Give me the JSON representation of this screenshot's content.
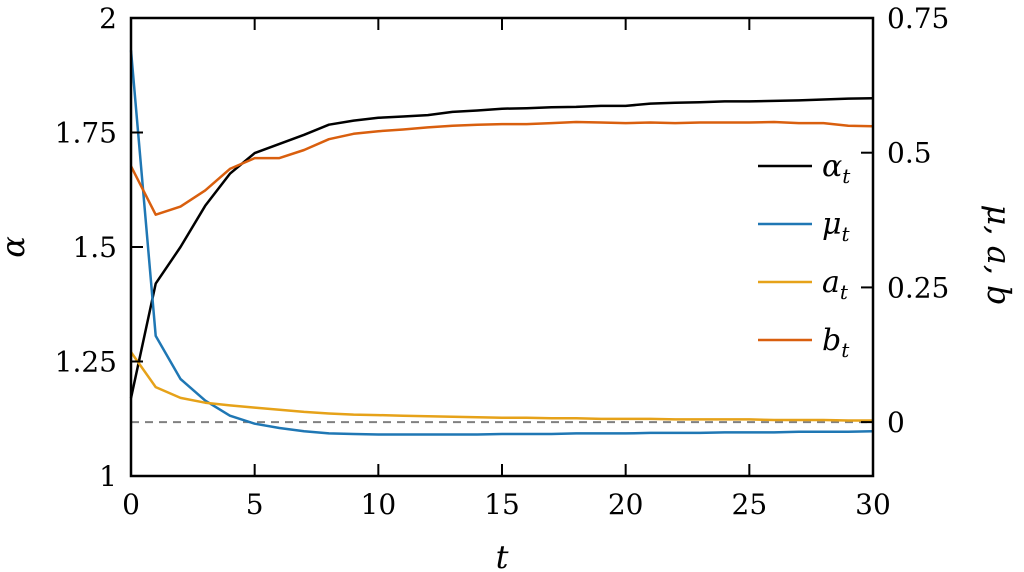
{
  "chart_data": {
    "type": "line",
    "xlabel": "t",
    "ylabel_left": "α",
    "ylabel_right": "μ, a, b",
    "xlim": [
      0,
      30
    ],
    "ylim_left": [
      1,
      2
    ],
    "ylim_right": [
      -0.1,
      0.75
    ],
    "x_ticks": [
      0,
      5,
      10,
      15,
      20,
      25,
      30
    ],
    "x_tick_labels": [
      "0",
      "5",
      "10",
      "15",
      "20",
      "25",
      "30"
    ],
    "y_left_ticks": [
      1,
      1.25,
      1.5,
      1.75,
      2
    ],
    "y_left_tick_labels": [
      "1",
      "1.25",
      "1.5",
      "1.75",
      "2"
    ],
    "y_right_ticks": [
      0,
      0.25,
      0.5,
      0.75
    ],
    "y_right_tick_labels": [
      "0",
      "0.25",
      "0.5",
      "0.75"
    ],
    "reference_line": {
      "axis": "right",
      "y": 0,
      "style": "dashed",
      "color": "#808080"
    },
    "legend_position": "center-right",
    "x": [
      0,
      1,
      2,
      3,
      4,
      5,
      6,
      7,
      8,
      9,
      10,
      11,
      12,
      13,
      14,
      15,
      16,
      17,
      18,
      19,
      20,
      21,
      22,
      23,
      24,
      25,
      26,
      27,
      28,
      29,
      30
    ],
    "series": [
      {
        "name": "α",
        "subscript": "t",
        "axis": "left",
        "color": "#000000",
        "values": [
          1.17,
          1.42,
          1.5,
          1.59,
          1.66,
          1.705,
          1.725,
          1.745,
          1.767,
          1.776,
          1.782,
          1.785,
          1.788,
          1.795,
          1.798,
          1.802,
          1.803,
          1.805,
          1.806,
          1.808,
          1.808,
          1.813,
          1.815,
          1.816,
          1.818,
          1.818,
          1.819,
          1.82,
          1.822,
          1.824,
          1.825
        ]
      },
      {
        "name": "μ",
        "subscript": "t",
        "axis": "right",
        "color": "#1f77b4",
        "values": [
          0.69,
          0.16,
          0.08,
          0.04,
          0.012,
          -0.003,
          -0.011,
          -0.017,
          -0.021,
          -0.022,
          -0.023,
          -0.023,
          -0.023,
          -0.023,
          -0.023,
          -0.022,
          -0.022,
          -0.022,
          -0.021,
          -0.021,
          -0.021,
          -0.02,
          -0.02,
          -0.02,
          -0.019,
          -0.019,
          -0.019,
          -0.018,
          -0.018,
          -0.018,
          -0.017
        ]
      },
      {
        "name": "a",
        "subscript": "t",
        "axis": "right",
        "color": "#e6a219",
        "values": [
          0.13,
          0.065,
          0.045,
          0.036,
          0.031,
          0.027,
          0.023,
          0.019,
          0.016,
          0.014,
          0.013,
          0.012,
          0.011,
          0.01,
          0.009,
          0.008,
          0.008,
          0.007,
          0.007,
          0.006,
          0.006,
          0.006,
          0.005,
          0.005,
          0.005,
          0.005,
          0.004,
          0.004,
          0.004,
          0.003,
          0.003
        ]
      },
      {
        "name": "b",
        "subscript": "t",
        "axis": "right",
        "color": "#d95f0e",
        "values": [
          0.475,
          0.385,
          0.4,
          0.43,
          0.47,
          0.49,
          0.49,
          0.505,
          0.525,
          0.535,
          0.54,
          0.543,
          0.547,
          0.55,
          0.552,
          0.553,
          0.553,
          0.555,
          0.557,
          0.556,
          0.555,
          0.556,
          0.555,
          0.556,
          0.556,
          0.556,
          0.557,
          0.555,
          0.555,
          0.55,
          0.549
        ]
      }
    ]
  }
}
